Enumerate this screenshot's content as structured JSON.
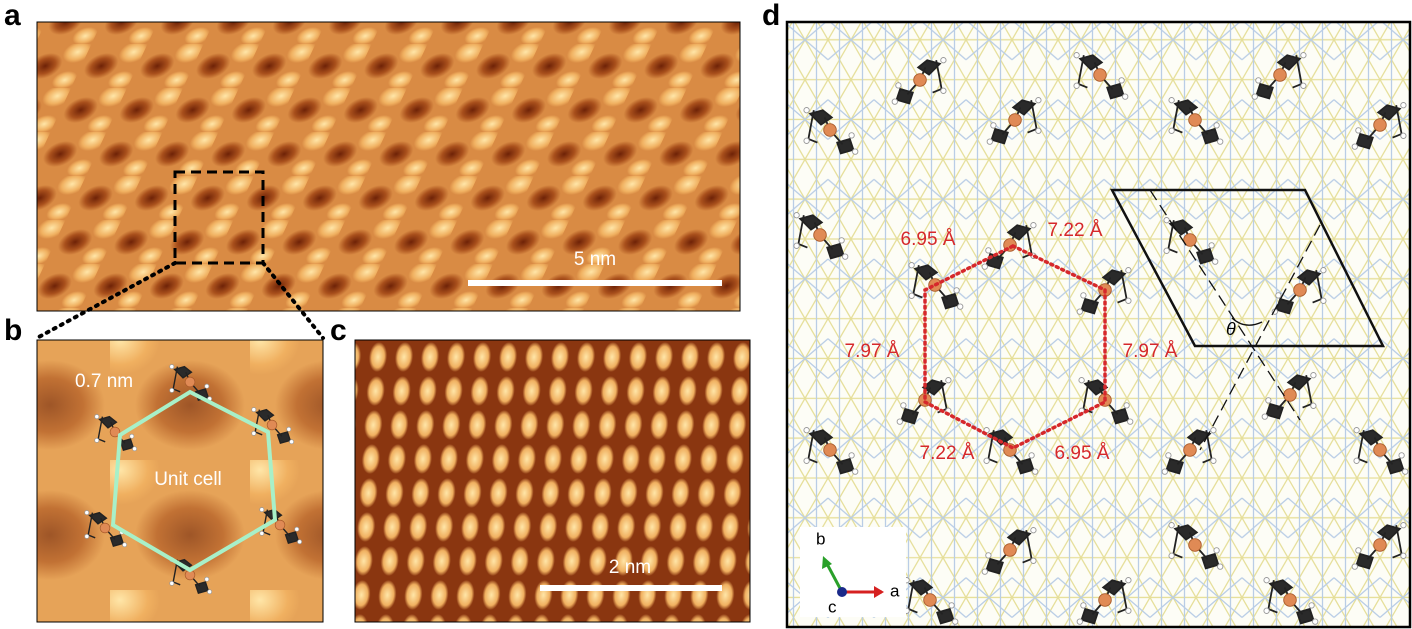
{
  "panels": [
    {
      "label": "a",
      "scale_bar": "5 nm"
    },
    {
      "label": "b",
      "annotations": [
        "0.7 nm",
        "Unit cell"
      ]
    },
    {
      "label": "c",
      "scale_bar": "2 nm"
    },
    {
      "label": "d",
      "distances": [
        "6.95 Å",
        "7.22 Å",
        "7.97 Å",
        "7.97 Å",
        "7.22 Å",
        "6.95 Å"
      ],
      "angle": "θ",
      "axes": [
        "b",
        "a",
        "c"
      ]
    }
  ]
}
